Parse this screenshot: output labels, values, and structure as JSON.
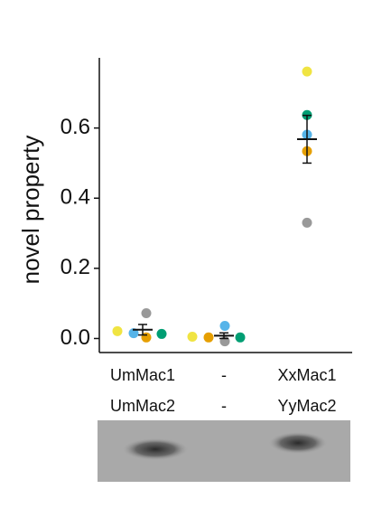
{
  "chart_data": {
    "type": "dot",
    "y_label": "novel property",
    "categories": [
      [
        "UmMac1",
        "UmMac2"
      ],
      [
        "-",
        "-"
      ],
      [
        "XxMac1",
        "YyMac2"
      ]
    ],
    "series": [
      {
        "color": "#f0e442",
        "values": [
          0.021,
          0.005,
          0.761
        ]
      },
      {
        "color": "#56b4e9",
        "values": [
          0.015,
          0.036,
          0.581
        ]
      },
      {
        "color": "#e69f00",
        "values": [
          0.003,
          0.003,
          0.534
        ]
      },
      {
        "color": "#999999",
        "values": [
          0.072,
          -0.008,
          0.33
        ]
      },
      {
        "color": "#009e73",
        "values": [
          0.013,
          0.003,
          0.637
        ]
      }
    ],
    "means": [
      0.025,
      0.008,
      0.568
    ],
    "errors": [
      0.015,
      0.008,
      0.068
    ],
    "ylim": [
      -0.04,
      0.8
    ],
    "yticks": [
      {
        "value": 0,
        "label": "0.0"
      },
      0.2,
      0.4,
      0.6
    ]
  }
}
